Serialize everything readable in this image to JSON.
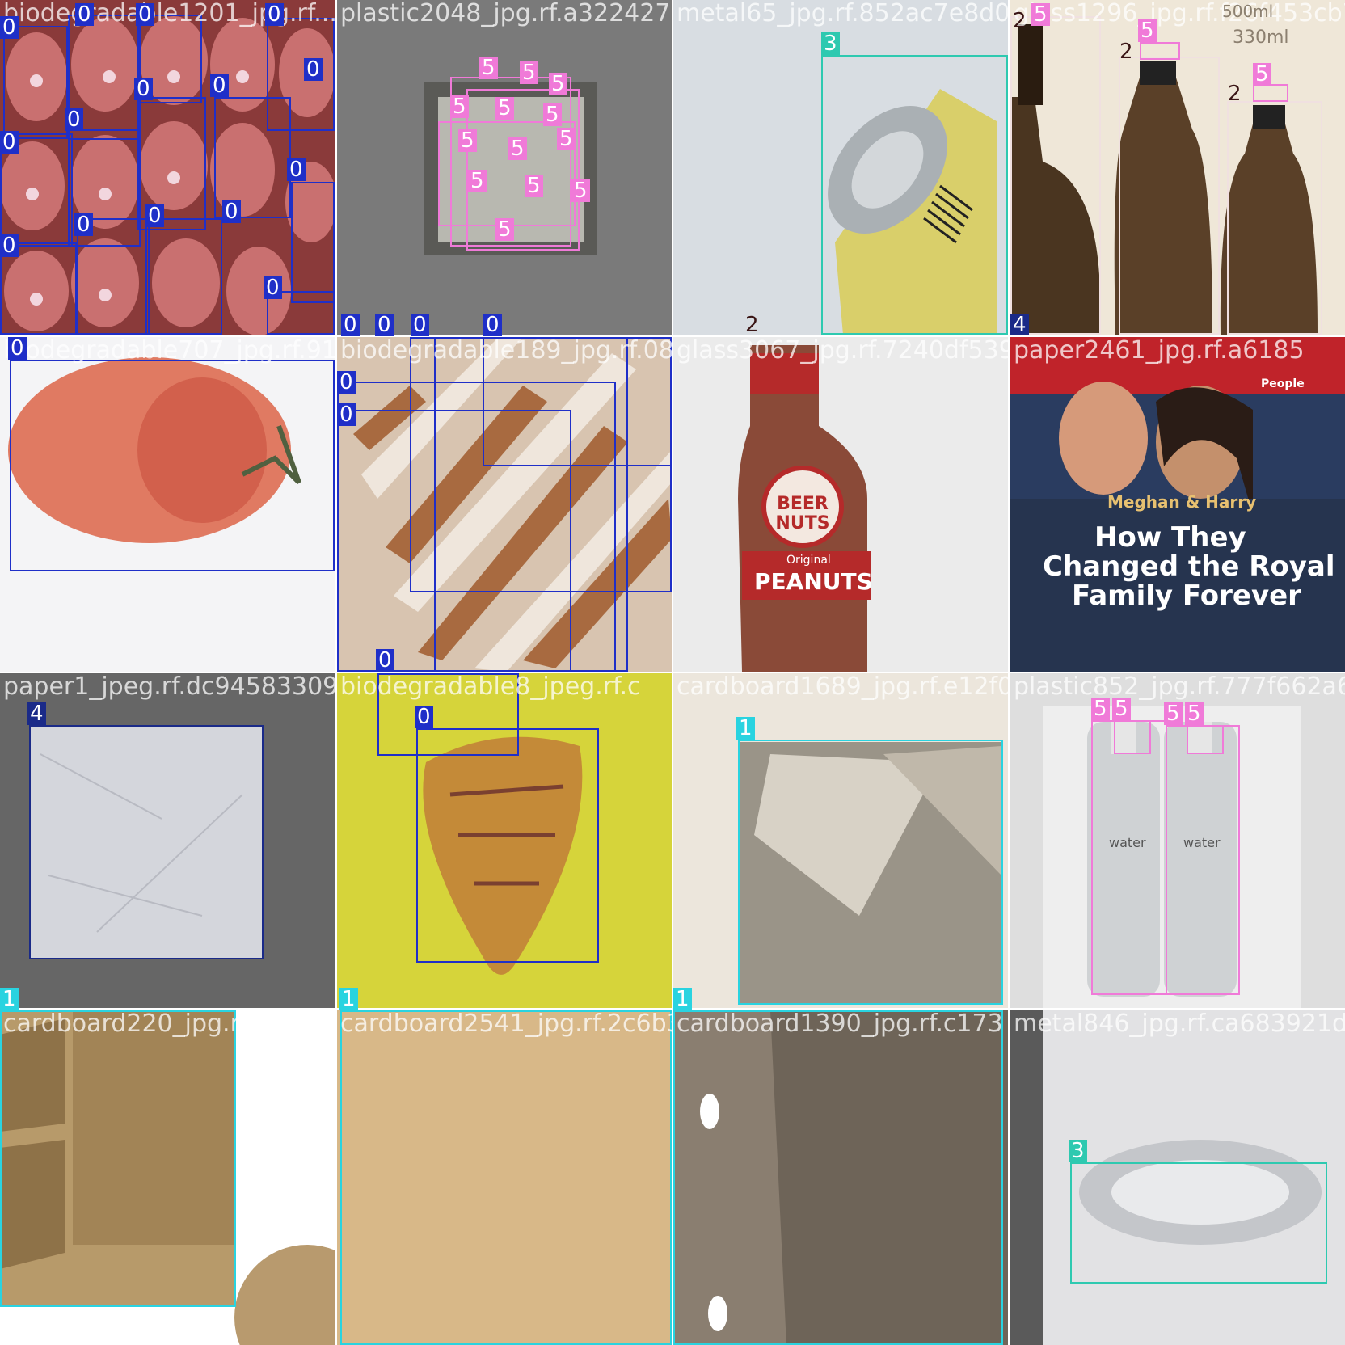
{
  "tiles": [
    {
      "name": "biodegradable1201_jpg.rf...",
      "labels": [
        "0",
        "0",
        "0",
        "0",
        "0",
        "0",
        "0",
        "0",
        "0",
        "0",
        "0",
        "0",
        "0",
        "0",
        "0",
        "0",
        "0"
      ]
    },
    {
      "name": "plastic2048_jpg.rf.a32242779",
      "labels": [
        "5",
        "5",
        "5",
        "5",
        "5",
        "5",
        "5",
        "5",
        "5",
        "5",
        "5",
        "5",
        "5"
      ]
    },
    {
      "name": "metal65_jpg.rf.852ac7e8d0",
      "labels": [
        "3",
        "2"
      ]
    },
    {
      "name": "glass1296_jpg.rf.f26f453cb76",
      "labels": [
        "2",
        "5",
        "2",
        "5",
        "2",
        "5",
        "4"
      ],
      "print_text": [
        "500ml",
        "330ml"
      ]
    },
    {
      "name": "biodegradable707_jpg.rf.918",
      "labels": [
        "0",
        "0",
        "0",
        "0",
        "0",
        "0",
        "0"
      ]
    },
    {
      "name": "biodegradable189_jpg.rf.08",
      "labels": [
        "0"
      ]
    },
    {
      "name": "glass3067_jpg.rf.7240df539",
      "labels": [],
      "print_text": [
        "BEER NUTS",
        "Original",
        "PEANUTS"
      ]
    },
    {
      "name": "paper2461_jpg.rf.a6185",
      "labels": [],
      "print_text": [
        "People",
        "Meghan & Harry",
        "How They",
        "Changed the Royal",
        "Family Forever"
      ]
    },
    {
      "name": "paper1_jpeg.rf.dc94583309e",
      "labels": [
        "4"
      ]
    },
    {
      "name": "biodegradable8_jpeg.rf.c",
      "labels": [
        "0"
      ]
    },
    {
      "name": "cardboard1689_jpg.rf.e12f0f",
      "labels": [
        "1"
      ]
    },
    {
      "name": "plastic852_jpg.rf.777f662a63",
      "labels": [
        "5",
        "5",
        "5",
        "5"
      ],
      "print_text": [
        "water",
        "water"
      ]
    },
    {
      "name": "cardboard220_jpg.rf.a231b7",
      "labels": [
        "1"
      ]
    },
    {
      "name": "cardboard2541_jpg.rf.2c6b3",
      "labels": [
        "1"
      ]
    },
    {
      "name": "cardboard1390_jpg.rf.c173",
      "labels": [
        "1"
      ]
    },
    {
      "name": "metal846_jpg.rf.ca683921d8",
      "labels": [
        "3"
      ]
    }
  ]
}
